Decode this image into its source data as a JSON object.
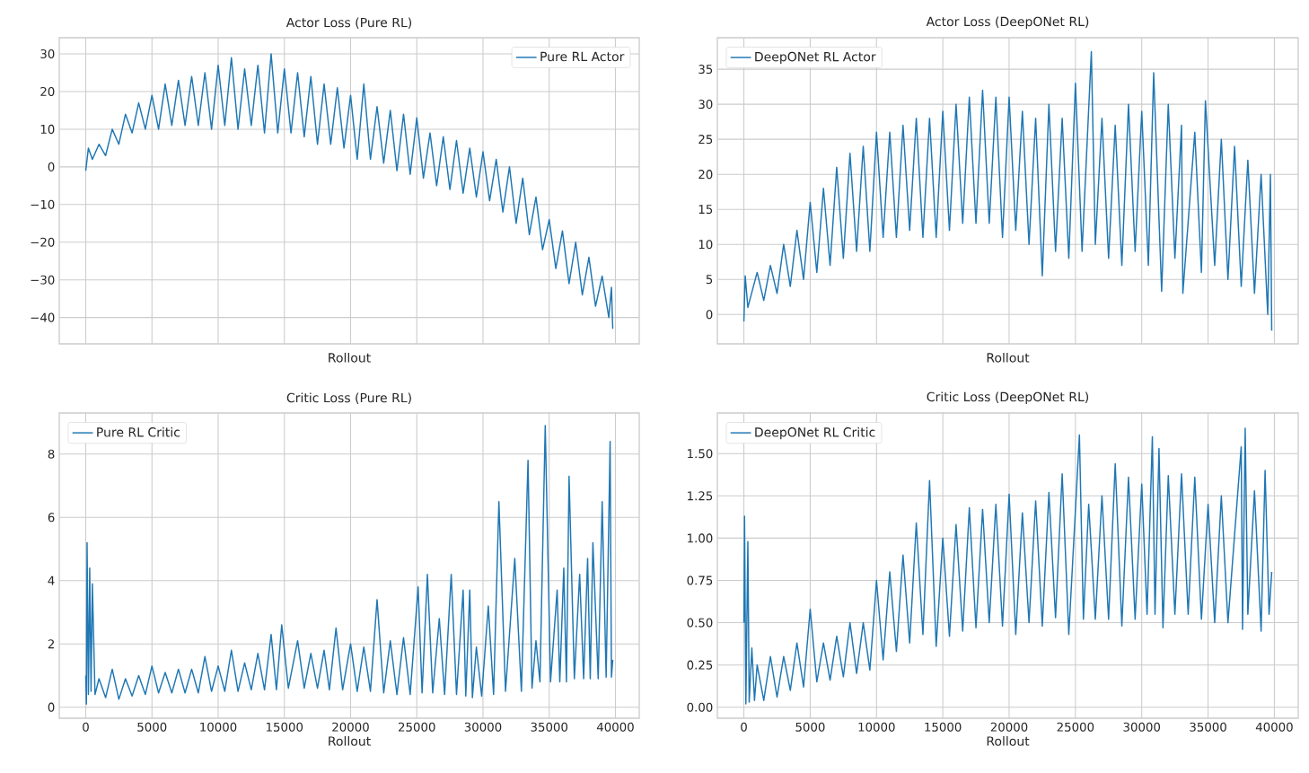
{
  "chart_data": [
    {
      "type": "line",
      "title": "Actor Loss (Pure RL)",
      "xlabel": "Rollout",
      "xlim": [
        -2000,
        41800
      ],
      "ylim": [
        -47,
        34.3
      ],
      "xticks": [
        0,
        5000,
        10000,
        15000,
        20000,
        25000,
        30000,
        35000,
        40000
      ],
      "yticks": [
        {
          "value": -40,
          "label": "−40"
        },
        {
          "value": -30,
          "label": "−30"
        },
        {
          "value": -20,
          "label": "−20"
        },
        {
          "value": -10,
          "label": "−10"
        },
        0,
        10,
        20,
        30
      ],
      "tick_labels": "y",
      "grid": true,
      "legend": "top right",
      "series": [
        {
          "name": "Pure RL Actor",
          "color": "#1f77b4",
          "x": [
            0,
            200,
            500,
            1000,
            1500,
            2000,
            2500,
            3000,
            3500,
            4000,
            4500,
            5000,
            5500,
            6000,
            6500,
            7000,
            7500,
            8000,
            8500,
            9000,
            9500,
            10000,
            10500,
            11000,
            11500,
            12000,
            12500,
            13000,
            13500,
            14000,
            14500,
            15000,
            15500,
            16000,
            16500,
            17000,
            17500,
            18000,
            18500,
            19000,
            19500,
            20000,
            20500,
            21000,
            21500,
            22000,
            22500,
            23000,
            23500,
            24000,
            24500,
            25000,
            25500,
            26000,
            26500,
            27000,
            27500,
            28000,
            28500,
            29000,
            29500,
            30000,
            30500,
            31000,
            31500,
            32000,
            32500,
            33000,
            33500,
            34000,
            34500,
            35000,
            35500,
            36000,
            36500,
            37000,
            37500,
            38000,
            38500,
            39000,
            39500,
            39700,
            39800
          ],
          "values": [
            -1,
            5,
            2,
            6,
            3,
            10,
            6,
            14,
            9,
            17,
            10,
            19,
            10,
            22,
            11,
            23,
            11,
            24,
            11,
            25,
            10,
            27,
            11,
            29,
            10,
            26,
            11,
            27,
            9,
            30,
            9,
            26,
            9,
            25,
            8,
            24,
            6,
            22,
            6,
            21,
            5,
            19,
            2,
            22,
            2,
            16,
            1,
            15,
            -1,
            14,
            -2,
            13,
            -3,
            9,
            -5,
            8,
            -6,
            7,
            -7,
            5,
            -8,
            4,
            -9,
            2,
            -12,
            0,
            -15,
            -3,
            -18,
            -8,
            -22,
            -14,
            -27,
            -17,
            -31,
            -20,
            -34,
            -24,
            -37,
            -29,
            -40,
            -32,
            -43
          ]
        }
      ]
    },
    {
      "type": "line",
      "title": "Actor Loss (DeepONet RL)",
      "xlabel": "Rollout",
      "xlim": [
        -2000,
        41800
      ],
      "ylim": [
        -4.2,
        39.5
      ],
      "xticks": [
        0,
        5000,
        10000,
        15000,
        20000,
        25000,
        30000,
        35000,
        40000
      ],
      "yticks": [
        0,
        5,
        10,
        15,
        20,
        25,
        30,
        35
      ],
      "tick_labels": "y",
      "grid": true,
      "legend": "top left",
      "series": [
        {
          "name": "DeepONet RL Actor",
          "color": "#1f77b4",
          "x": [
            0,
            100,
            300,
            1000,
            1500,
            2000,
            2500,
            3000,
            3500,
            4000,
            4500,
            5000,
            5500,
            6000,
            6500,
            7000,
            7500,
            8000,
            8500,
            9000,
            9500,
            10000,
            10500,
            11000,
            11500,
            12000,
            12500,
            13000,
            13500,
            14000,
            14500,
            15000,
            15500,
            16000,
            16500,
            17000,
            17500,
            18000,
            18500,
            19000,
            19500,
            20000,
            20500,
            21000,
            21500,
            22000,
            22500,
            23000,
            23500,
            24000,
            24500,
            25000,
            25500,
            26200,
            26500,
            27000,
            27500,
            28000,
            28500,
            29000,
            29500,
            30000,
            30500,
            30900,
            31500,
            32000,
            32500,
            33000,
            33100,
            34000,
            34500,
            34800,
            35500,
            36000,
            36500,
            37000,
            37500,
            38000,
            38500,
            39000,
            39500,
            39700,
            39800
          ],
          "values": [
            -1,
            5.5,
            1,
            6,
            2,
            7,
            3,
            10,
            4,
            12,
            5,
            16,
            6,
            18,
            7,
            21,
            8,
            23,
            9,
            24,
            9,
            26,
            11,
            26,
            11,
            27,
            12,
            28,
            11,
            28,
            11,
            29,
            12,
            30,
            13,
            31,
            13,
            32,
            13,
            31,
            11,
            31,
            12,
            29,
            10,
            28,
            5.5,
            30,
            9,
            28,
            8,
            33,
            9,
            37.5,
            10,
            28,
            8,
            27,
            7,
            30,
            9,
            29,
            7,
            34.5,
            3.3,
            30,
            8,
            27,
            3,
            26,
            6,
            30.5,
            7,
            25,
            5,
            24,
            4,
            22,
            3,
            20,
            0,
            20,
            -2.3
          ]
        }
      ]
    },
    {
      "type": "line",
      "title": "Critic Loss (Pure RL)",
      "xlabel": "Rollout",
      "xlim": [
        -2000,
        41800
      ],
      "ylim": [
        -0.35,
        9.3
      ],
      "xticks": [
        0,
        5000,
        10000,
        15000,
        20000,
        25000,
        30000,
        35000,
        40000
      ],
      "yticks": [
        0,
        2,
        4,
        6,
        8
      ],
      "grid": true,
      "legend": "top left",
      "series": [
        {
          "name": "Pure RL Critic",
          "color": "#1f77b4",
          "x": [
            0,
            50,
            100,
            200,
            300,
            400,
            500,
            700,
            1000,
            1500,
            2000,
            2500,
            3000,
            3500,
            4000,
            4500,
            5000,
            5500,
            6000,
            6500,
            7000,
            7500,
            8000,
            8500,
            9000,
            9500,
            10000,
            10500,
            11000,
            11500,
            12000,
            12500,
            13000,
            13500,
            14000,
            14400,
            14800,
            15300,
            16000,
            16500,
            17000,
            17500,
            18000,
            18400,
            18900,
            19400,
            20000,
            20500,
            21000,
            21500,
            22000,
            22500,
            23000,
            23500,
            24000,
            24500,
            25100,
            25400,
            25800,
            26200,
            26700,
            27100,
            27600,
            28000,
            28500,
            28700,
            29000,
            29200,
            29500,
            29900,
            30400,
            30800,
            31200,
            31700,
            32400,
            32900,
            33400,
            33700,
            34000,
            34300,
            34700,
            35100,
            35600,
            35800,
            36100,
            36300,
            36500,
            36900,
            37300,
            37600,
            37900,
            38100,
            38300,
            38700,
            39000,
            39300,
            39600,
            39700,
            39800
          ],
          "values": [
            1.0,
            0.1,
            5.2,
            0.4,
            4.4,
            0.5,
            3.9,
            0.4,
            0.9,
            0.3,
            1.2,
            0.25,
            0.9,
            0.35,
            1.0,
            0.4,
            1.3,
            0.45,
            1.1,
            0.45,
            1.2,
            0.45,
            1.2,
            0.45,
            1.6,
            0.5,
            1.3,
            0.5,
            1.8,
            0.5,
            1.4,
            0.55,
            1.7,
            0.55,
            2.3,
            0.55,
            2.6,
            0.6,
            2.1,
            0.6,
            1.7,
            0.6,
            1.8,
            0.55,
            2.5,
            0.55,
            2.0,
            0.5,
            1.9,
            0.5,
            3.4,
            0.45,
            2.1,
            0.4,
            2.2,
            0.4,
            3.8,
            0.45,
            4.2,
            0.45,
            2.8,
            0.4,
            4.2,
            0.4,
            3.7,
            0.35,
            3.7,
            0.3,
            1.9,
            0.35,
            3.2,
            0.4,
            6.5,
            0.5,
            4.7,
            0.5,
            7.8,
            0.6,
            2.1,
            0.8,
            8.9,
            0.8,
            3.7,
            0.8,
            4.4,
            0.8,
            7.3,
            0.9,
            4.2,
            0.9,
            4.7,
            0.9,
            5.2,
            0.9,
            6.5,
            0.95,
            8.4,
            0.95,
            1.5
          ]
        }
      ]
    },
    {
      "type": "line",
      "title": "Critic Loss (DeepONet RL)",
      "xlabel": "Rollout",
      "xlim": [
        -2000,
        41800
      ],
      "ylim": [
        -0.065,
        1.74
      ],
      "xticks": [
        0,
        5000,
        10000,
        15000,
        20000,
        25000,
        30000,
        35000,
        40000
      ],
      "yticks": [
        {
          "value": 0,
          "label": "0.00"
        },
        {
          "value": 0.25,
          "label": "0.25"
        },
        {
          "value": 0.5,
          "label": "0.50"
        },
        {
          "value": 0.75,
          "label": "0.75"
        },
        {
          "value": 1,
          "label": "1.00"
        },
        {
          "value": 1.25,
          "label": "1.25"
        },
        {
          "value": 1.5,
          "label": "1.50"
        }
      ],
      "grid": true,
      "legend": "top left",
      "series": [
        {
          "name": "DeepONet RL Critic",
          "color": "#1f77b4",
          "x": [
            0,
            50,
            150,
            300,
            400,
            600,
            800,
            1000,
            1500,
            2000,
            2500,
            3000,
            3500,
            4000,
            4500,
            5000,
            5500,
            6000,
            6500,
            7000,
            7500,
            8000,
            8500,
            9000,
            9500,
            10000,
            10500,
            11000,
            11500,
            12000,
            12500,
            13000,
            13500,
            14000,
            14500,
            15000,
            15500,
            16000,
            16500,
            17000,
            17500,
            18000,
            18500,
            19000,
            19500,
            20000,
            20500,
            21000,
            21500,
            22000,
            22500,
            23000,
            23500,
            24000,
            24500,
            25300,
            25600,
            26000,
            26500,
            27000,
            27500,
            28000,
            28500,
            29000,
            29500,
            30000,
            30400,
            30800,
            31000,
            31300,
            31600,
            32000,
            32500,
            33000,
            33500,
            34000,
            34500,
            35000,
            35500,
            36000,
            36500,
            37500,
            37600,
            37800,
            38000,
            38500,
            39000,
            39300,
            39600,
            39800
          ],
          "values": [
            0.5,
            1.13,
            0.02,
            0.98,
            0.03,
            0.35,
            0.04,
            0.25,
            0.04,
            0.3,
            0.06,
            0.3,
            0.1,
            0.38,
            0.12,
            0.58,
            0.15,
            0.38,
            0.16,
            0.42,
            0.18,
            0.5,
            0.2,
            0.5,
            0.22,
            0.75,
            0.28,
            0.8,
            0.33,
            0.9,
            0.38,
            1.09,
            0.43,
            1.34,
            0.36,
            1.0,
            0.42,
            1.08,
            0.45,
            1.18,
            0.47,
            1.17,
            0.5,
            1.2,
            0.48,
            1.26,
            0.43,
            1.15,
            0.5,
            1.22,
            0.48,
            1.27,
            0.53,
            1.38,
            0.43,
            1.61,
            0.52,
            1.2,
            0.52,
            1.25,
            0.52,
            1.44,
            0.48,
            1.36,
            0.52,
            1.32,
            0.55,
            1.6,
            0.55,
            1.53,
            0.47,
            1.37,
            0.55,
            1.38,
            0.55,
            1.36,
            0.52,
            1.2,
            0.5,
            1.25,
            0.5,
            1.54,
            0.46,
            1.65,
            0.55,
            1.28,
            0.45,
            1.4,
            0.55,
            0.8
          ]
        }
      ]
    }
  ]
}
